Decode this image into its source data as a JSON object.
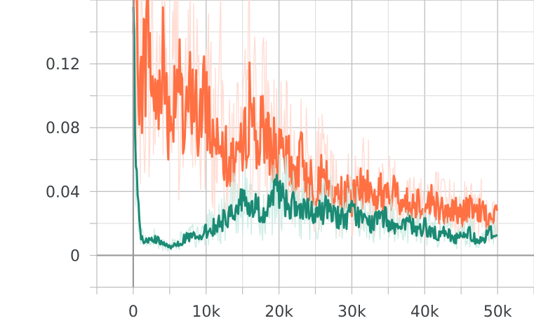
{
  "chart_data": {
    "type": "line",
    "title": "",
    "xlabel": "",
    "ylabel": "",
    "xlim": [
      -5000,
      55000
    ],
    "ylim": [
      -0.02,
      0.16
    ],
    "grid": true,
    "x_ticks": [
      0,
      10000,
      20000,
      30000,
      40000,
      50000
    ],
    "x_tick_labels": [
      "0",
      "10k",
      "20k",
      "30k",
      "40k",
      "50k"
    ],
    "y_ticks": [
      0,
      0.04,
      0.08,
      0.12
    ],
    "y_tick_labels": [
      "0",
      "0.04",
      "0.08",
      "0.12"
    ],
    "series": [
      {
        "color": "#ff7043",
        "raw_color": "#ffd9cf",
        "x": [
          0,
          500,
          1000,
          2000,
          3000,
          4000,
          5000,
          6000,
          7000,
          8000,
          9000,
          10000,
          11000,
          12000,
          13000,
          14000,
          15000,
          16000,
          17000,
          18000,
          19000,
          20000,
          21000,
          22000,
          23000,
          24000,
          25000,
          26000,
          27000,
          28000,
          29000,
          30000,
          31000,
          32000,
          33000,
          34000,
          35000,
          36000,
          37000,
          38000,
          39000,
          40000,
          41000,
          42000,
          43000,
          44000,
          45000,
          46000,
          47000,
          48000,
          49000,
          50000
        ],
        "y": [
          0.16,
          0.16,
          0.1,
          0.14,
          0.09,
          0.13,
          0.08,
          0.12,
          0.07,
          0.11,
          0.08,
          0.1,
          0.07,
          0.09,
          0.05,
          0.07,
          0.06,
          0.1,
          0.07,
          0.08,
          0.07,
          0.06,
          0.06,
          0.05,
          0.06,
          0.05,
          0.045,
          0.05,
          0.04,
          0.035,
          0.04,
          0.035,
          0.04,
          0.045,
          0.035,
          0.04,
          0.035,
          0.04,
          0.035,
          0.03,
          0.035,
          0.03,
          0.035,
          0.03,
          0.025,
          0.03,
          0.025,
          0.03,
          0.025,
          0.03,
          0.02,
          0.025
        ]
      },
      {
        "color": "#1b8a74",
        "raw_color": "#c9ebe3",
        "x": [
          0,
          300,
          600,
          1000,
          2000,
          3000,
          4000,
          5000,
          6000,
          7000,
          8000,
          9000,
          10000,
          11000,
          12000,
          13000,
          14000,
          15000,
          16000,
          17000,
          18000,
          19000,
          20000,
          21000,
          22000,
          23000,
          24000,
          25000,
          26000,
          27000,
          28000,
          29000,
          30000,
          31000,
          32000,
          33000,
          34000,
          35000,
          36000,
          37000,
          38000,
          39000,
          40000,
          41000,
          42000,
          43000,
          44000,
          45000,
          46000,
          47000,
          48000,
          49000,
          50000
        ],
        "y": [
          0.16,
          0.05,
          0.045,
          0.01,
          0.008,
          0.01,
          0.007,
          0.005,
          0.008,
          0.01,
          0.012,
          0.01,
          0.015,
          0.018,
          0.02,
          0.025,
          0.03,
          0.035,
          0.03,
          0.03,
          0.025,
          0.035,
          0.04,
          0.035,
          0.03,
          0.028,
          0.027,
          0.025,
          0.028,
          0.03,
          0.025,
          0.022,
          0.027,
          0.025,
          0.02,
          0.02,
          0.025,
          0.022,
          0.018,
          0.017,
          0.02,
          0.015,
          0.018,
          0.015,
          0.012,
          0.015,
          0.01,
          0.012,
          0.015,
          0.01,
          0.01,
          0.015,
          0.012
        ]
      }
    ]
  }
}
